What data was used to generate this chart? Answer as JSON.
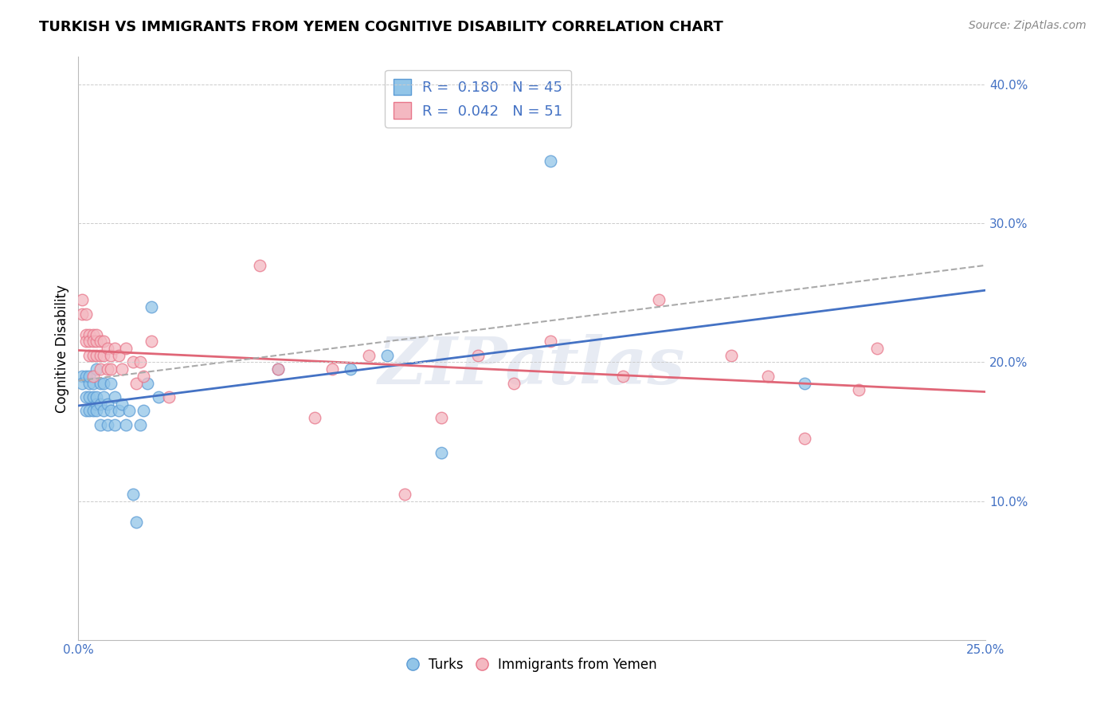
{
  "title": "TURKISH VS IMMIGRANTS FROM YEMEN COGNITIVE DISABILITY CORRELATION CHART",
  "source": "Source: ZipAtlas.com",
  "ylabel": "Cognitive Disability",
  "right_yticks": [
    10.0,
    20.0,
    30.0,
    40.0
  ],
  "legend_turks_R": "0.180",
  "legend_turks_N": "45",
  "legend_yemen_R": "0.042",
  "legend_yemen_N": "51",
  "turks_color": "#92c5e8",
  "yemen_color": "#f4b8c1",
  "turks_edge_color": "#5b9bd5",
  "yemen_edge_color": "#e8768a",
  "turks_line_color": "#4472c4",
  "yemen_line_color": "#e06677",
  "dash_color": "#aaaaaa",
  "watermark": "ZIPatlas",
  "xlim": [
    0.0,
    0.25
  ],
  "ylim": [
    0.0,
    0.42
  ],
  "turks_x": [
    0.001,
    0.001,
    0.002,
    0.002,
    0.002,
    0.003,
    0.003,
    0.003,
    0.003,
    0.004,
    0.004,
    0.004,
    0.005,
    0.005,
    0.005,
    0.005,
    0.006,
    0.006,
    0.006,
    0.007,
    0.007,
    0.007,
    0.008,
    0.008,
    0.009,
    0.009,
    0.01,
    0.01,
    0.011,
    0.012,
    0.013,
    0.014,
    0.015,
    0.016,
    0.017,
    0.018,
    0.019,
    0.02,
    0.022,
    0.055,
    0.075,
    0.085,
    0.1,
    0.13,
    0.2
  ],
  "turks_y": [
    0.19,
    0.185,
    0.19,
    0.175,
    0.165,
    0.185,
    0.175,
    0.165,
    0.19,
    0.175,
    0.165,
    0.185,
    0.195,
    0.17,
    0.175,
    0.165,
    0.185,
    0.17,
    0.155,
    0.175,
    0.165,
    0.185,
    0.17,
    0.155,
    0.165,
    0.185,
    0.175,
    0.155,
    0.165,
    0.17,
    0.155,
    0.165,
    0.105,
    0.085,
    0.155,
    0.165,
    0.185,
    0.24,
    0.175,
    0.195,
    0.195,
    0.205,
    0.135,
    0.345,
    0.185
  ],
  "yemen_x": [
    0.001,
    0.001,
    0.002,
    0.002,
    0.002,
    0.003,
    0.003,
    0.003,
    0.004,
    0.004,
    0.004,
    0.004,
    0.005,
    0.005,
    0.005,
    0.006,
    0.006,
    0.006,
    0.007,
    0.007,
    0.008,
    0.008,
    0.009,
    0.009,
    0.01,
    0.011,
    0.012,
    0.013,
    0.015,
    0.016,
    0.017,
    0.018,
    0.02,
    0.025,
    0.05,
    0.055,
    0.065,
    0.07,
    0.08,
    0.09,
    0.1,
    0.11,
    0.12,
    0.13,
    0.15,
    0.16,
    0.18,
    0.19,
    0.2,
    0.215,
    0.22
  ],
  "yemen_y": [
    0.235,
    0.245,
    0.235,
    0.22,
    0.215,
    0.22,
    0.215,
    0.205,
    0.22,
    0.215,
    0.205,
    0.19,
    0.215,
    0.22,
    0.205,
    0.215,
    0.205,
    0.195,
    0.215,
    0.205,
    0.21,
    0.195,
    0.205,
    0.195,
    0.21,
    0.205,
    0.195,
    0.21,
    0.2,
    0.185,
    0.2,
    0.19,
    0.215,
    0.175,
    0.27,
    0.195,
    0.16,
    0.195,
    0.205,
    0.105,
    0.16,
    0.205,
    0.185,
    0.215,
    0.19,
    0.245,
    0.205,
    0.19,
    0.145,
    0.18,
    0.21
  ]
}
